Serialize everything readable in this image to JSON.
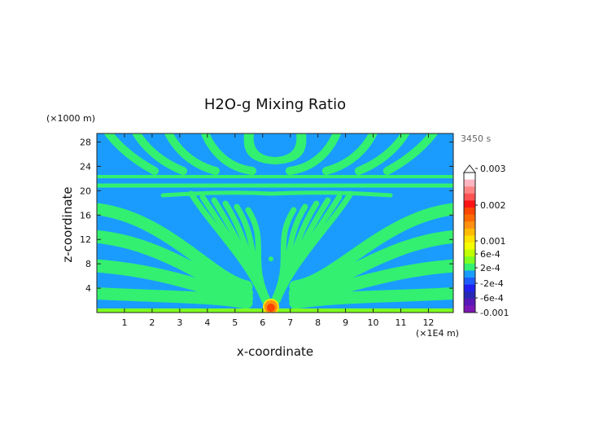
{
  "chart_data": {
    "type": "heatmap",
    "title": "H2O-g Mixing Ratio",
    "xlabel": "x-coordinate",
    "ylabel": "z-coordinate",
    "x_unit": "(×1E4 m)",
    "y_unit": "(×1000 m)",
    "time_label": "3450 s",
    "xlim": [
      0,
      12.9
    ],
    "ylim": [
      0,
      29.4
    ],
    "x_ticks": [
      "1",
      "2",
      "3",
      "4",
      "5",
      "6",
      "7",
      "8",
      "9",
      "10",
      "11",
      "12"
    ],
    "y_ticks": [
      "4",
      "8",
      "12",
      "16",
      "20",
      "24",
      "28"
    ],
    "fields": {
      "background_level": "-2e-4",
      "band_level": "2e-4",
      "source_center_x": 6.3,
      "source_peak": "0.001"
    },
    "colorbar": {
      "labels": [
        "0.003",
        "0.002",
        "0.001",
        "6e-4",
        "2e-4",
        "-2e-4",
        "-6e-4",
        "-0.001"
      ],
      "colors": [
        "#ffffff",
        "#ffb5c0",
        "#ff8585",
        "#ff5252",
        "#ff1414",
        "#ff4500",
        "#ff6a00",
        "#ff9010",
        "#ffbb00",
        "#ffe300",
        "#f5ff00",
        "#c0ff00",
        "#7cff20",
        "#33f070",
        "#1a9cff",
        "#1e5dff",
        "#2020f0",
        "#2828b4",
        "#5818b8",
        "#7c16b4"
      ]
    }
  }
}
